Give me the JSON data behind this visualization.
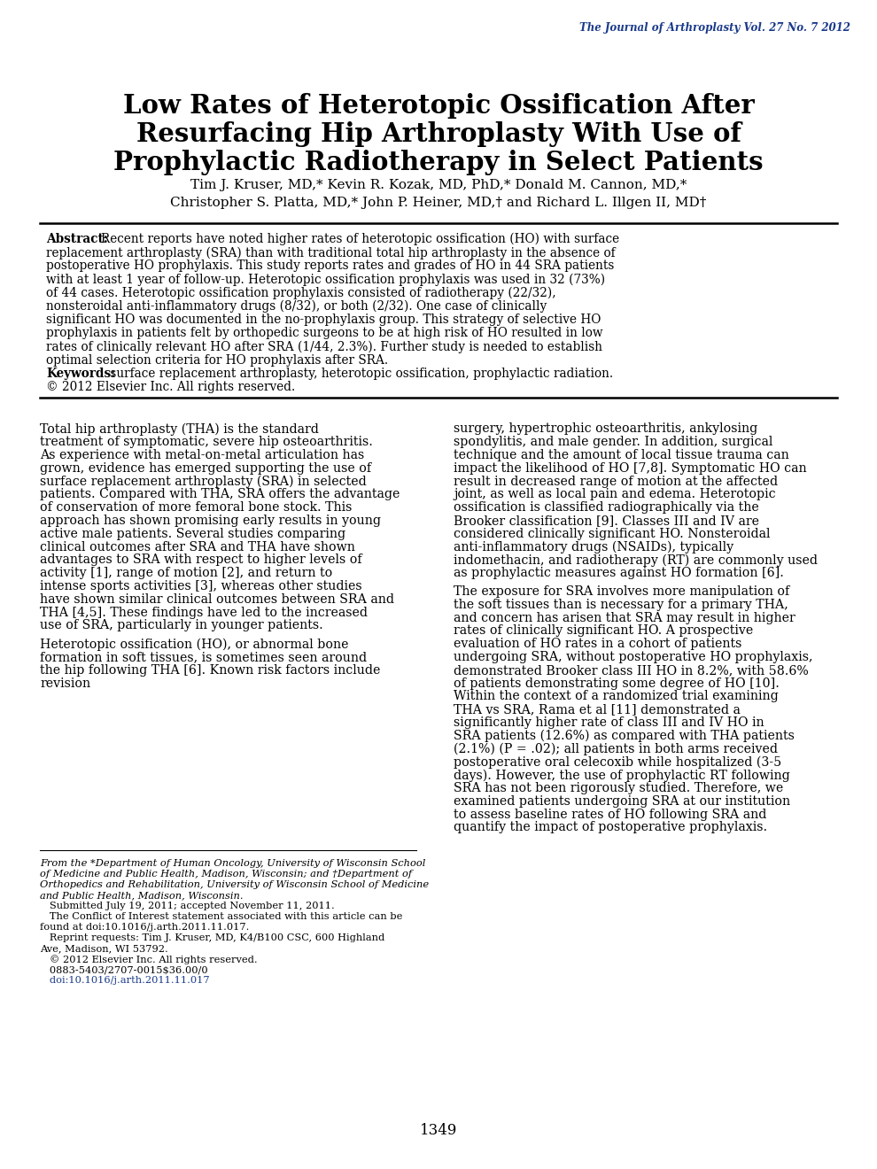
{
  "journal_header": "The Journal of Arthroplasty Vol. 27 No. 7 2012",
  "title_line1": "Low Rates of Heterotopic Ossification After",
  "title_line2": "Resurfacing Hip Arthroplasty With Use of",
  "title_line3": "Prophylactic Radiotherapy in Select Patients",
  "authors_line1": "Tim J. Kruser, MD,* Kevin R. Kozak, MD, PhD,* Donald M. Cannon, MD,*",
  "authors_line2": "Christopher S. Platta, MD,* John P. Heiner, MD,† and Richard L. Illgen II, MD†",
  "abstract_label": "Abstract:",
  "abstract_text": "Recent reports have noted higher rates of heterotopic ossification (HO) with surface replacement arthroplasty (SRA) than with traditional total hip arthroplasty in the absence of postoperative HO prophylaxis. This study reports rates and grades of HO in 44 SRA patients with at least 1 year of follow-up. Heterotopic ossification prophylaxis was used in 32 (73%) of 44 cases. Heterotopic ossification prophylaxis consisted of radiotherapy (22/32), nonsteroidal anti-inflammatory drugs (8/32), or both (2/32). One case of clinically significant HO was documented in the no-prophylaxis group. This strategy of selective HO prophylaxis in patients felt by orthopedic surgeons to be at high risk of HO resulted in low rates of clinically relevant HO after SRA (1/44, 2.3%). Further study is needed to establish optimal selection criteria for HO prophylaxis after SRA.",
  "keywords_label": "Keywords:",
  "keywords_text": " surface replacement arthroplasty, heterotopic ossification, prophylactic radiation.",
  "copyright": "© 2012 Elsevier Inc. All rights reserved.",
  "footnote1": "From the *Department of Human Oncology, University of Wisconsin School\nof Medicine and Public Health, Madison, Wisconsin; and †Department of\nOrthopedics and Rehabilitation, University of Wisconsin School of Medicine\nand Public Health, Madison, Wisconsin.",
  "footnote2": "   Submitted July 19, 2011; accepted November 11, 2011.",
  "footnote3": "   The Conflict of Interest statement associated with this article can be\nfound at doi:10.1016/j.arth.2011.11.017.",
  "footnote4": "   Reprint requests: Tim J. Kruser, MD, K4/B100 CSC, 600 Highland\nAve, Madison, WI 53792.",
  "footnote5": "   © 2012 Elsevier Inc. All rights reserved.",
  "footnote6": "   0883-5403/2707-0015$36.00/0",
  "footnote7": "   doi:10.1016/j.arth.2011.11.017",
  "col1_para1": "Total hip arthroplasty (THA) is the standard treatment of symptomatic, severe hip osteoarthritis. As experience with metal-on-metal articulation has grown, evidence has emerged supporting the use of surface replacement arthroplasty (SRA) in selected patients. Compared with THA, SRA offers the advantage of conservation of more femoral bone stock. This approach has shown promising early results in young active male patients. Several studies comparing clinical outcomes after SRA and THA have shown advantages to SRA with respect to higher levels of activity [1], range of motion [2], and return to intense sports activities [3], whereas other studies have shown similar clinical outcomes between SRA and THA [4,5]. These findings have led to the increased use of SRA, particularly in younger patients.",
  "col1_para2": "   Heterotopic ossification (HO), or abnormal bone formation in soft tissues, is sometimes seen around the hip following THA [6]. Known risk factors include revision",
  "col2_para1": "surgery, hypertrophic osteoarthritis, ankylosing spondylitis, and male gender. In addition, surgical technique and the amount of local tissue trauma can impact the likelihood of HO [7,8]. Symptomatic HO can result in decreased range of motion at the affected joint, as well as local pain and edema. Heterotopic ossification is classified radiographically via the Brooker classification [9]. Classes III and IV are considered clinically significant HO. Nonsteroidal anti-inflammatory drugs (NSAIDs), typically indomethacin, and radiotherapy (RT) are commonly used as prophylactic measures against HO formation [6].",
  "col2_para2": "   The exposure for SRA involves more manipulation of the soft tissues than is necessary for a primary THA, and concern has arisen that SRA may result in higher rates of clinically significant HO. A prospective evaluation of HO rates in a cohort of patients undergoing SRA, without postoperative HO prophylaxis, demonstrated Brooker class III HO in 8.2%, with 58.6% of patients demonstrating some degree of HO [10]. Within the context of a randomized trial examining THA vs SRA, Rama et al [11] demonstrated a significantly higher rate of class III and IV HO in SRA patients (12.6%) as compared with THA patients (2.1%) (P = .02); all patients in both arms received postoperative oral celecoxib while hospitalized (3-5 days). However, the use of prophylactic RT following SRA has not been rigorously studied. Therefore, we examined patients undergoing SRA at our institution to assess baseline rates of HO following SRA and quantify the impact of postoperative prophylaxis.",
  "page_number": "1349",
  "background_color": "#ffffff",
  "title_color": "#000000",
  "journal_header_color": "#1a3a8a",
  "body_text_color": "#000000",
  "link_color": "#1a3a8a"
}
